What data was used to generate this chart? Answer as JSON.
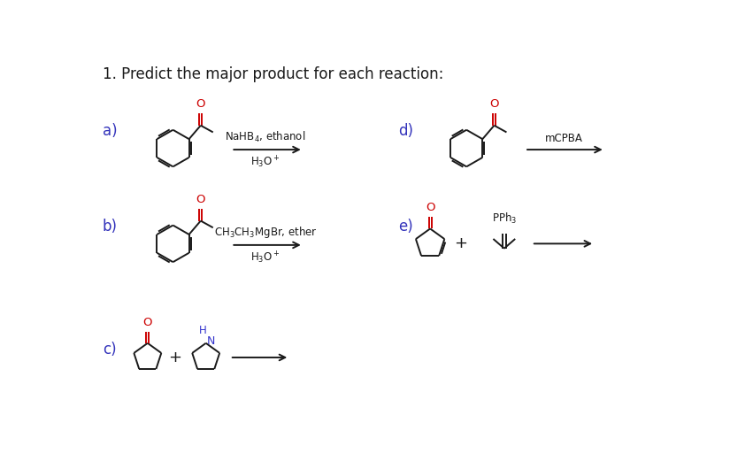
{
  "title": "1. Predict the major product for each reaction:",
  "title_fontsize": 12,
  "background_color": "#ffffff",
  "label_a": "a)",
  "label_b": "b)",
  "label_c": "c)",
  "label_d": "d)",
  "label_e": "e)",
  "label_fontsize": 12,
  "reagent_a_line1": "NaHB$_4$, ethanol",
  "reagent_a_line2": "H$_3$O$^+$",
  "reagent_b_line1": "CH$_3$CH$_3$MgBr, ether",
  "reagent_b_line2": "H$_3$O$^+$",
  "reagent_d": "mCPBA",
  "reagent_e": "PPh$_3$",
  "line_color": "#1a1a1a",
  "oxygen_color": "#cc0000",
  "nitrogen_color": "#3333cc",
  "reagent_fontsize": 8.5,
  "plus_fontsize": 13,
  "lw": 1.4
}
